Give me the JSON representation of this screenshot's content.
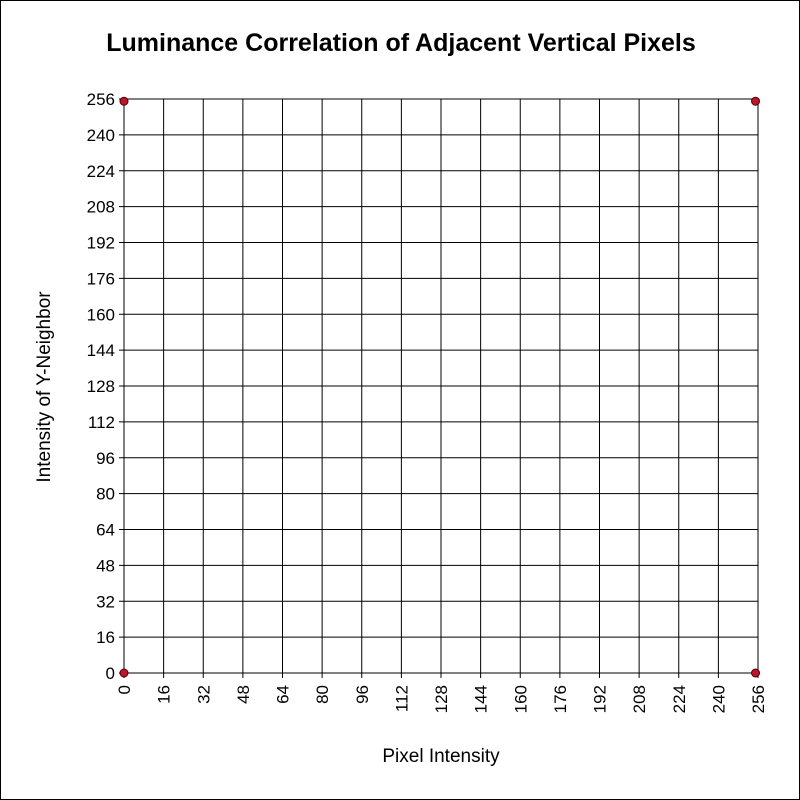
{
  "chart_data": {
    "type": "scatter",
    "title": "Luminance Correlation of Adjacent Vertical Pixels",
    "xlabel": "Pixel Intensity",
    "ylabel": "Intensity of Y-Neighbor",
    "xlim": [
      0,
      256
    ],
    "ylim": [
      0,
      256
    ],
    "xticks": [
      0,
      16,
      32,
      48,
      64,
      80,
      96,
      112,
      128,
      144,
      160,
      176,
      192,
      208,
      224,
      240,
      256
    ],
    "yticks": [
      0,
      16,
      32,
      48,
      64,
      80,
      96,
      112,
      128,
      144,
      160,
      176,
      192,
      208,
      224,
      240,
      256
    ],
    "grid": true,
    "legend": "none",
    "series": [
      {
        "color": "#c0142c",
        "points": [
          {
            "x": 0,
            "y": 0
          },
          {
            "x": 0,
            "y": 255
          },
          {
            "x": 255,
            "y": 255
          },
          {
            "x": 255,
            "y": 0
          }
        ]
      }
    ]
  }
}
